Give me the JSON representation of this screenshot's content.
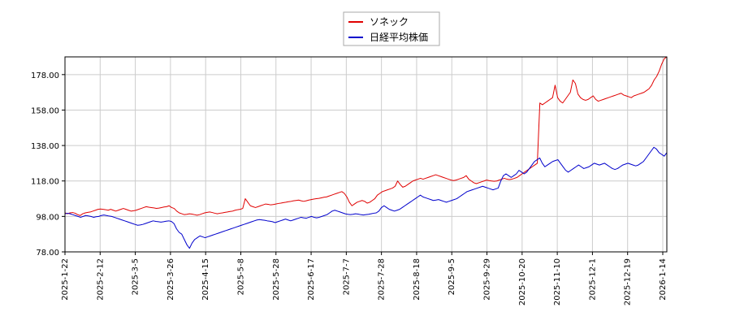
{
  "chart_data": {
    "type": "line",
    "title": "",
    "xlabel": "",
    "ylabel": "",
    "ylim": [
      78,
      188
    ],
    "yticks": [
      "78.00",
      "98.00",
      "118.00",
      "138.00",
      "158.00",
      "178.00"
    ],
    "xticks": [
      "2025-1-22",
      "2025-2-12",
      "2025-3-5",
      "2025-3-26",
      "2025-4-15",
      "2025-5-8",
      "2025-5-28",
      "2025-6-17",
      "2025-7-7",
      "2025-7-28",
      "2025-8-18",
      "2025-9-5",
      "2025-9-29",
      "2025-10-20",
      "2025-11-10",
      "2025-12-1",
      "2025-12-19",
      "2026-1-14"
    ],
    "grid": true,
    "legend_position": "top-center",
    "colors": {
      "sonec": "#e00000",
      "nikkei": "#0000cc",
      "grid": "#cccccc",
      "axis": "#000000"
    },
    "series": [
      {
        "name": "ソネック",
        "color": "#e00000",
        "values": [
          100,
          99.5,
          100,
          100.2,
          99.8,
          99,
          98.5,
          99.5,
          100,
          100.3,
          100.5,
          101,
          101.5,
          102,
          102.2,
          102,
          101.8,
          101.5,
          102,
          101.5,
          101,
          101.5,
          102,
          102.5,
          102,
          101.5,
          101,
          101.2,
          101.5,
          102,
          102.5,
          103,
          103.5,
          103.2,
          103,
          102.8,
          102.5,
          102.7,
          103,
          103.3,
          103.5,
          104,
          103,
          102.5,
          101,
          100,
          99.5,
          99,
          99.2,
          99.5,
          99.3,
          99,
          98.7,
          99,
          99.5,
          100,
          100.3,
          100.5,
          100.2,
          99.8,
          99.5,
          99.8,
          100,
          100.3,
          100.5,
          100.8,
          101,
          101.5,
          101.8,
          102,
          102.5,
          108,
          106,
          104,
          103.5,
          103,
          103.5,
          104,
          104.5,
          105,
          104.8,
          104.5,
          104.7,
          105,
          105.3,
          105.5,
          105.8,
          106,
          106.3,
          106.5,
          106.8,
          107,
          107.2,
          106.8,
          106.5,
          106.8,
          107.2,
          107.5,
          107.8,
          108,
          108.2,
          108.5,
          108.8,
          109,
          109.5,
          110,
          110.5,
          111,
          111.5,
          112,
          111,
          109,
          106,
          104,
          105,
          106,
          106.5,
          107,
          106.5,
          105.5,
          106,
          107,
          108,
          110,
          111,
          112,
          112.5,
          113,
          113.5,
          114,
          115,
          118,
          116,
          114.5,
          115,
          116,
          117,
          118,
          118.5,
          119,
          119.5,
          119,
          119.5,
          120,
          120.5,
          121,
          121.5,
          121,
          120.5,
          120,
          119.5,
          119,
          118.5,
          118.2,
          118.5,
          119,
          119.5,
          120,
          121,
          119,
          118,
          117,
          116.5,
          117,
          117.5,
          118,
          118.5,
          118.2,
          118,
          117.8,
          118,
          118.5,
          119,
          119.5,
          119,
          118.8,
          119,
          119.5,
          120,
          121,
          122,
          123,
          124,
          125,
          126,
          127,
          128,
          162,
          161,
          162,
          163,
          164,
          165,
          172,
          165,
          163,
          162,
          164,
          166,
          168,
          175,
          173,
          167,
          165,
          164,
          163.5,
          164,
          165,
          166,
          164,
          163,
          163.5,
          164,
          164.5,
          165,
          165.5,
          166,
          166.5,
          167,
          167.5,
          166.5,
          166,
          165.5,
          165,
          166,
          166.5,
          167,
          167.5,
          168,
          169,
          170,
          172,
          175,
          177,
          180,
          184,
          187,
          188
        ]
      },
      {
        "name": "日経平均株価",
        "color": "#0000cc",
        "values": [
          99.5,
          99.8,
          99.5,
          99,
          98.5,
          98,
          97.5,
          98,
          98.5,
          98.3,
          98,
          97.5,
          97.8,
          98,
          98.5,
          98.8,
          98.5,
          98.2,
          98,
          97.5,
          97,
          96.5,
          96,
          95.5,
          95,
          94.5,
          94,
          93.5,
          93,
          93.2,
          93.5,
          94,
          94.5,
          95,
          95.5,
          95.2,
          95,
          94.8,
          95,
          95.3,
          95.5,
          95.2,
          94,
          91,
          89,
          88,
          85,
          82,
          80,
          83,
          85,
          86,
          87,
          86.5,
          86,
          86.5,
          87,
          87.5,
          88,
          88.5,
          89,
          89.5,
          90,
          90.5,
          91,
          91.5,
          92,
          92.5,
          93,
          93.5,
          94,
          94.5,
          95,
          95.5,
          96,
          96.2,
          96,
          95.8,
          95.5,
          95.3,
          95,
          94.5,
          95,
          95.5,
          96,
          96.5,
          96,
          95.5,
          96,
          96.5,
          97,
          97.5,
          97.2,
          97,
          97.5,
          98,
          97.5,
          97.2,
          97.5,
          98,
          98.5,
          99,
          100,
          101,
          101.5,
          101,
          100.5,
          100,
          99.5,
          99.2,
          99,
          99.2,
          99.5,
          99.3,
          99,
          98.8,
          99,
          99.2,
          99.5,
          99.8,
          100,
          101,
          103,
          104,
          103,
          102,
          101.5,
          101,
          101.5,
          102,
          103,
          104,
          105,
          106,
          107,
          108,
          109,
          110,
          109,
          108.5,
          108,
          107.5,
          107,
          107.2,
          107.5,
          107,
          106.5,
          106,
          106.5,
          107,
          107.5,
          108,
          109,
          110,
          111,
          112,
          112.5,
          113,
          113.5,
          114,
          114.5,
          115,
          114.5,
          114,
          113.5,
          113,
          113.5,
          114,
          118,
          121,
          122,
          121,
          120,
          121,
          122,
          124,
          123,
          122,
          123,
          125,
          127,
          129,
          130,
          131,
          128,
          126,
          127,
          128,
          129,
          129.5,
          130,
          128,
          126,
          124,
          123,
          124,
          125,
          126,
          127,
          126,
          125,
          125.5,
          126,
          127,
          128,
          127.5,
          127,
          127.5,
          128,
          127,
          126,
          125,
          124.5,
          125,
          126,
          127,
          127.5,
          128,
          127.5,
          127,
          126.5,
          127,
          128,
          129,
          131,
          133,
          135,
          137,
          136,
          134,
          133,
          132,
          134
        ]
      }
    ]
  }
}
